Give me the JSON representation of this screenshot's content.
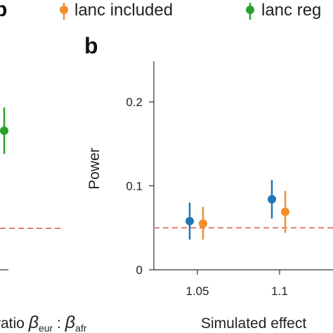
{
  "panel_letters": {
    "left": "b",
    "right": "b"
  },
  "legend": {
    "entries": [
      {
        "label": "lanc included",
        "color": "#f28e2b"
      },
      {
        "label": "lanc reg",
        "color": "#2ca02c"
      }
    ]
  },
  "left_panel": {
    "xlabel_prefix": "ratio ",
    "xlabel_beta1": "β",
    "xlabel_sub1": "eur",
    "xlabel_sep": " : ",
    "xlabel_beta2": "β",
    "xlabel_sub2": "afr",
    "reference_color": "#e07b7b"
  },
  "chart_data": {
    "type": "scatter",
    "subtype": "point-with-error-bars",
    "xlabel": "Simulated effect",
    "ylabel": "Power",
    "categories": [
      "1.05",
      "1.1"
    ],
    "ylim": [
      0,
      0.25
    ],
    "yticks": [
      0,
      0.1,
      0.2
    ],
    "ytick_labels": [
      "0",
      "0.1",
      "0.2"
    ],
    "reference_line": {
      "y": 0.05,
      "style": "dashed",
      "color": "#e07b7b"
    },
    "series": [
      {
        "color": "#1f77b4",
        "values": [
          0.058,
          0.084
        ],
        "lower": [
          0.036,
          0.061
        ],
        "upper": [
          0.08,
          0.107
        ]
      },
      {
        "name": "lanc included",
        "color": "#f28e2b",
        "values": [
          0.055,
          0.069
        ],
        "lower": [
          0.036,
          0.044
        ],
        "upper": [
          0.075,
          0.094
        ]
      }
    ]
  }
}
